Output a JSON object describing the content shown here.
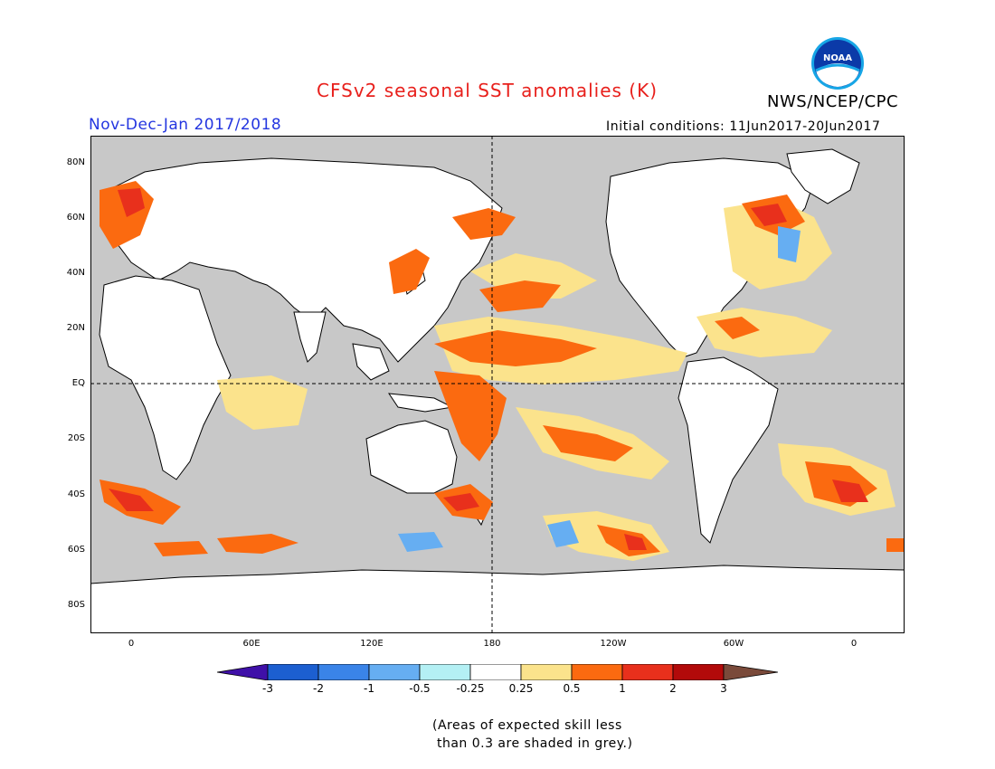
{
  "title": "CFSv2 seasonal SST anomalies (K)",
  "period": "Nov-Dec-Jan 2017/2018",
  "org": "NWS/NCEP/CPC",
  "initial_conditions": "Initial conditions: 11Jun2017-20Jun2017",
  "logo_text": "NOAA",
  "lat_labels": [
    "80N",
    "60N",
    "40N",
    "20N",
    "EQ",
    "20S",
    "40S",
    "60S",
    "80S"
  ],
  "lon_labels": [
    "0",
    "60E",
    "120E",
    "180",
    "120W",
    "60W",
    "0"
  ],
  "colorbar": {
    "ticks": [
      "-3",
      "-2",
      "-1",
      "-0.5",
      "-0.25",
      "0.25",
      "0.5",
      "1",
      "2",
      "3"
    ],
    "colors": [
      "#3f10a8",
      "#1c5fd0",
      "#3a84e8",
      "#66aef2",
      "#b4f0f4",
      "#ffffff",
      "#fbe38c",
      "#fb6a10",
      "#e8301c",
      "#b20a0a",
      "#7a4a3a"
    ]
  },
  "note_lines": [
    "(Areas of expected skill less",
    " than 0.3 are shaded in grey.)"
  ],
  "colors": {
    "title": "#e8201c",
    "period": "#2436e0",
    "grey_mask": "#c8c8c8"
  }
}
